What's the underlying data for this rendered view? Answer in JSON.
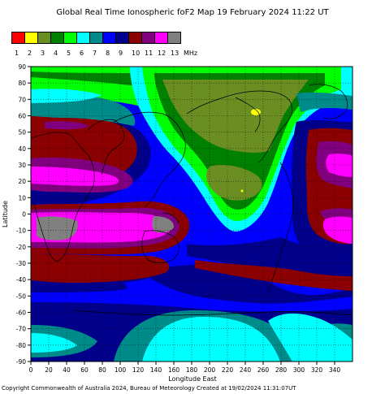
{
  "title": "Global Real Time Ionospheric foF2 Map  19 February 2024 11:22 UT",
  "legend": {
    "labels": [
      "1",
      "2",
      "3",
      "4",
      "5",
      "6",
      "7",
      "8",
      "9",
      "10",
      "11",
      "12",
      "13"
    ],
    "unit": "MHz",
    "colors": [
      "#ff0000",
      "#ffff00",
      "#6b8e23",
      "#008000",
      "#00ff00",
      "#00ffff",
      "#008b8b",
      "#0000ff",
      "#00008b",
      "#8b0000",
      "#800080",
      "#ff00ff",
      "#808080"
    ]
  },
  "axes": {
    "y_label": "Latitude",
    "x_label": "Longitude East",
    "y_ticks": [
      "90",
      "80",
      "70",
      "60",
      "50",
      "40",
      "30",
      "20",
      "10",
      "0",
      "-10",
      "-20",
      "-30",
      "-40",
      "-50",
      "-60",
      "-70",
      "-80",
      "-90"
    ],
    "x_ticks": [
      "0",
      "20",
      "40",
      "60",
      "80",
      "100",
      "120",
      "140",
      "160",
      "180",
      "200",
      "220",
      "240",
      "260",
      "280",
      "300",
      "320",
      "340"
    ]
  },
  "footer": "Copyright Commonwealth of Australia 2024, Bureau of Meteorology    Created at 19/02/2024 11:31:07UT"
}
